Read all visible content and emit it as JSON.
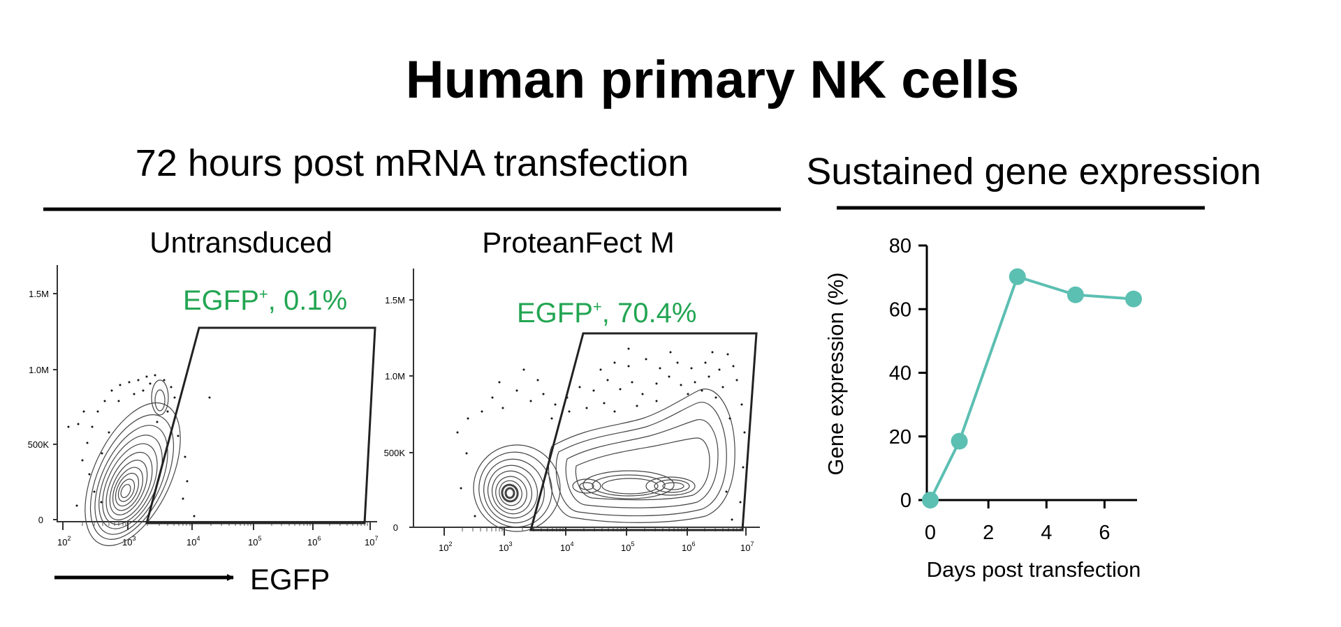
{
  "title": "Human primary NK cells",
  "sections": {
    "left": "72 hours post mRNA transfection",
    "right": "Sustained gene expression"
  },
  "colors": {
    "gate_label": "#22a552",
    "line": "#5bbfb2",
    "ink": "#000000"
  },
  "flow_plots": [
    {
      "panel_title": "Untransduced",
      "gate_name": "EGFP",
      "gate_superscript": "+",
      "gate_value": ", 0.1%",
      "y_ticks": [
        "0",
        "500K",
        "1.0M",
        "1.5M"
      ],
      "x_ticks": [
        {
          "base": "10",
          "exp": "2"
        },
        {
          "base": "10",
          "exp": "3"
        },
        {
          "base": "10",
          "exp": "4"
        },
        {
          "base": "10",
          "exp": "5"
        },
        {
          "base": "10",
          "exp": "6"
        },
        {
          "base": "10",
          "exp": "7"
        }
      ]
    },
    {
      "panel_title": "ProteanFect  M",
      "gate_name": "EGFP",
      "gate_superscript": "+",
      "gate_value": ", 70.4%",
      "y_ticks": [
        "0",
        "500K",
        "1.0M",
        "1.5M"
      ],
      "x_ticks": [
        {
          "base": "10",
          "exp": "2"
        },
        {
          "base": "10",
          "exp": "3"
        },
        {
          "base": "10",
          "exp": "4"
        },
        {
          "base": "10",
          "exp": "5"
        },
        {
          "base": "10",
          "exp": "6"
        },
        {
          "base": "10",
          "exp": "7"
        }
      ]
    }
  ],
  "x_axis_arrow_label": "EGFP",
  "chart_data": {
    "type": "line",
    "title": "Sustained gene expression",
    "xlabel": "Days post transfection",
    "ylabel": "Gene expression (%)",
    "x": [
      0,
      1,
      3,
      5,
      7
    ],
    "series": [
      {
        "name": "Gene expression",
        "values": [
          0,
          18.5,
          70.2,
          64.5,
          63.2
        ]
      }
    ],
    "xlim": [
      0,
      7
    ],
    "ylim": [
      0,
      80
    ],
    "x_ticks": [
      "0",
      "2",
      "4",
      "6"
    ],
    "y_ticks": [
      "0",
      "20",
      "40",
      "60",
      "80"
    ],
    "grid": false
  }
}
